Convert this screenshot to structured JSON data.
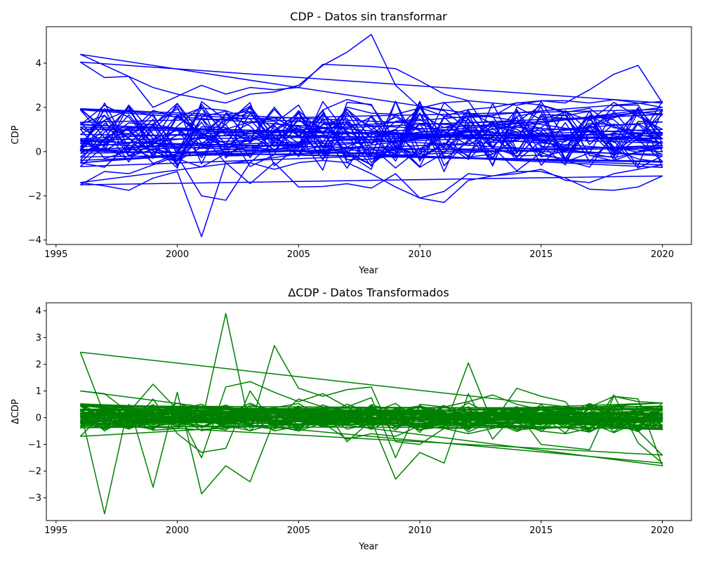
{
  "chart_data": [
    {
      "type": "line",
      "title": "CDP - Datos sin transformar",
      "xlabel": "Year",
      "ylabel": "CDP",
      "xlim": [
        1994.6,
        2021.2
      ],
      "ylim": [
        -4.2,
        5.65
      ],
      "xticks": [
        1995,
        2000,
        2005,
        2010,
        2015,
        2020
      ],
      "yticks": [
        -4,
        -2,
        0,
        2,
        4
      ],
      "color": "#0000ff",
      "grid": false,
      "legend": "none",
      "noise_seed": 7,
      "noise_bands": [
        {
          "count": 26,
          "low": -0.6,
          "high": 2.2,
          "spread": 0.35,
          "start_year": 1996,
          "end_year": 2020
        }
      ],
      "series": [
        {
          "x": [
            1996,
            1997,
            1998,
            1999,
            2000,
            2001,
            2002,
            2003,
            2004,
            2005,
            2006,
            2007,
            2008,
            2009,
            2010,
            2011,
            2012,
            2013,
            2014,
            2015,
            2016,
            2017,
            2018,
            2019,
            2020
          ],
          "y": [
            4.4,
            3.9,
            3.4,
            2.9,
            2.6,
            2.4,
            2.2,
            2.6,
            2.7,
            3.0,
            3.9,
            4.5,
            5.3,
            3.0,
            2.0,
            1.6,
            1.9,
            2.0,
            2.2,
            2.3,
            2.2,
            2.8,
            3.5,
            3.9,
            2.2
          ]
        },
        {
          "x": [
            1996,
            1997,
            1998,
            1999,
            2000,
            2001,
            2002,
            2003,
            2004,
            2005,
            2006,
            2007,
            2008,
            2009,
            2010,
            2011,
            2012,
            2013,
            2014,
            2015,
            2016,
            2017,
            2018,
            2019,
            2020
          ],
          "y": [
            4.05,
            3.35,
            3.4,
            2.0,
            2.5,
            3.0,
            2.6,
            2.9,
            2.8,
            2.9,
            3.95,
            3.9,
            3.85,
            3.75,
            3.2,
            2.6,
            2.3,
            2.2,
            2.1,
            2.3,
            2.3,
            2.2,
            2.35,
            2.2,
            2.0
          ]
        },
        {
          "x": [
            1996,
            1997,
            1998,
            1999,
            2000,
            2001,
            2002,
            2003,
            2004,
            2005,
            2006,
            2007,
            2008,
            2009,
            2010,
            2011,
            2012,
            2013,
            2014,
            2015,
            2016,
            2017,
            2018,
            2019,
            2020
          ],
          "y": [
            -1.4,
            -1.55,
            -1.75,
            -1.2,
            -0.9,
            -3.85,
            -0.5,
            -1.45,
            -0.5,
            -1.6,
            -1.58,
            -1.45,
            -1.65,
            -1.0,
            -2.1,
            -2.3,
            -1.3,
            -1.1,
            -0.9,
            -0.9,
            -1.2,
            -1.7,
            -1.75,
            -1.6,
            -1.1
          ]
        },
        {
          "x": [
            1996,
            1997,
            1998,
            1999,
            2000,
            2001,
            2002,
            2003,
            2004,
            2005,
            2006,
            2007,
            2008,
            2009,
            2010,
            2011,
            2012,
            2013,
            2014,
            2015,
            2016,
            2017,
            2018,
            2019,
            2020
          ],
          "y": [
            -1.5,
            -0.9,
            -1.0,
            -0.6,
            -0.2,
            -2.0,
            -2.2,
            -0.5,
            -0.8,
            -0.5,
            -0.4,
            -0.5,
            -1.0,
            -1.6,
            -2.1,
            -1.8,
            -1.0,
            -1.1,
            -1.0,
            -0.8,
            -1.3,
            -1.4,
            -1.0,
            -0.8,
            -0.6
          ]
        }
      ]
    },
    {
      "type": "line",
      "title": "ΔCDP - Datos Transformados",
      "xlabel": "Year",
      "ylabel": "ΔCDP",
      "xlim": [
        1994.6,
        2021.2
      ],
      "ylim": [
        -3.85,
        4.3
      ],
      "xticks": [
        1995,
        2000,
        2005,
        2010,
        2015,
        2020
      ],
      "yticks": [
        -3,
        -2,
        -1,
        0,
        1,
        2,
        3,
        4
      ],
      "color": "#008000",
      "grid": false,
      "legend": "none",
      "noise_seed": 13,
      "noise_bands": [
        {
          "count": 34,
          "low": -0.35,
          "high": 0.35,
          "spread": 0.25,
          "start_year": 1996,
          "end_year": 2020
        }
      ],
      "series": [
        {
          "x": [
            1996,
            1997,
            1998,
            1999,
            2000,
            2001,
            2002,
            2003,
            2004,
            2005,
            2006,
            2007,
            2008,
            2009,
            2010,
            2011,
            2012,
            2013,
            2014,
            2015,
            2016,
            2017,
            2018,
            2019,
            2020
          ],
          "y": [
            2.45,
            0.1,
            -0.3,
            0.2,
            0.1,
            -0.2,
            3.9,
            -0.4,
            2.7,
            1.1,
            0.8,
            1.05,
            1.15,
            -0.9,
            -1.0,
            -0.4,
            2.05,
            -0.2,
            1.1,
            0.8,
            0.6,
            -0.5,
            0.85,
            -0.95,
            -1.7
          ]
        },
        {
          "x": [
            1996,
            1997,
            1998,
            1999,
            2000,
            2001,
            2002,
            2003,
            2004,
            2005,
            2006,
            2007,
            2008,
            2009,
            2010,
            2011,
            2012,
            2013,
            2014,
            2015,
            2016,
            2017,
            2018,
            2019,
            2020
          ],
          "y": [
            0.3,
            -3.6,
            0.5,
            -2.6,
            0.95,
            -2.85,
            -1.8,
            -2.4,
            -0.1,
            0.7,
            0.4,
            -0.9,
            -0.1,
            -2.3,
            -1.3,
            -1.7,
            0.9,
            -0.8,
            0.2,
            -1.0,
            -1.1,
            -1.2,
            0.8,
            0.7,
            -1.8
          ]
        },
        {
          "x": [
            1996,
            1997,
            1998,
            1999,
            2000,
            2001,
            2002,
            2003,
            2004,
            2005,
            2006,
            2007,
            2008,
            2009,
            2010,
            2011,
            2012,
            2013,
            2014,
            2015,
            2016,
            2017,
            2018,
            2019,
            2020
          ],
          "y": [
            1.0,
            0.9,
            0.2,
            1.25,
            0.3,
            -1.5,
            1.15,
            1.35,
            0.95,
            0.6,
            0.9,
            0.4,
            0.75,
            -1.5,
            0.5,
            0.4,
            0.6,
            0.85,
            0.5,
            0.3,
            0.2,
            0.4,
            0.8,
            0.6,
            0.55
          ]
        },
        {
          "x": [
            1996,
            1997,
            1998,
            1999,
            2000,
            2001,
            2002,
            2003,
            2004,
            2005,
            2006,
            2007,
            2008,
            2009,
            2010,
            2011,
            2012,
            2013,
            2014,
            2015,
            2016,
            2017,
            2018,
            2019,
            2020
          ],
          "y": [
            -0.7,
            0.2,
            -0.4,
            0.7,
            -0.6,
            -1.3,
            -1.15,
            1.0,
            -0.3,
            -0.5,
            -0.2,
            -0.8,
            -0.6,
            -0.7,
            -0.3,
            -0.4,
            -0.6,
            -0.4,
            -0.2,
            -0.5,
            -0.6,
            -0.4,
            -0.3,
            -0.5,
            -1.4
          ]
        }
      ]
    }
  ]
}
